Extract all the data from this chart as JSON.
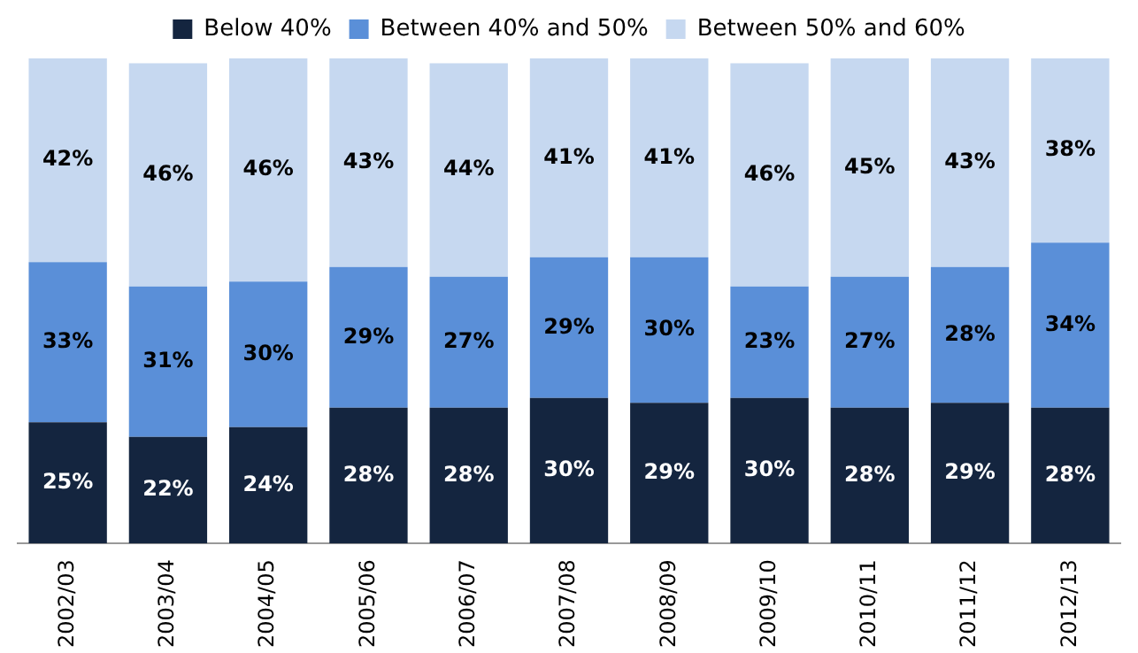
{
  "chart_data": {
    "type": "bar",
    "stacked": true,
    "legend": "top",
    "grid": false,
    "categories": [
      "2002/03",
      "2003/04",
      "2004/05",
      "2005/06",
      "2006/07",
      "2007/08",
      "2008/09",
      "2009/10",
      "2010/11",
      "2011/12",
      "2012/13"
    ],
    "series": [
      {
        "name": "Below 40%",
        "color": "#14253f",
        "values": [
          25,
          22,
          24,
          28,
          28,
          30,
          29,
          30,
          28,
          29,
          28
        ],
        "value_labels": [
          "25%",
          "22%",
          "24%",
          "28%",
          "28%",
          "30%",
          "29%",
          "30%",
          "28%",
          "29%",
          "28%"
        ]
      },
      {
        "name": "Between 40% and 50%",
        "color": "#5a8fd8",
        "values": [
          33,
          31,
          30,
          29,
          27,
          29,
          30,
          23,
          27,
          28,
          34
        ],
        "value_labels": [
          "33%",
          "31%",
          "30%",
          "29%",
          "27%",
          "29%",
          "30%",
          "23%",
          "27%",
          "28%",
          "34%"
        ]
      },
      {
        "name": "Between 50% and 60%",
        "color": "#c6d8f0",
        "values": [
          42,
          46,
          46,
          43,
          44,
          41,
          41,
          46,
          45,
          43,
          38
        ],
        "value_labels": [
          "42%",
          "46%",
          "46%",
          "43%",
          "44%",
          "41%",
          "41%",
          "46%",
          "45%",
          "43%",
          "38%"
        ]
      }
    ]
  }
}
